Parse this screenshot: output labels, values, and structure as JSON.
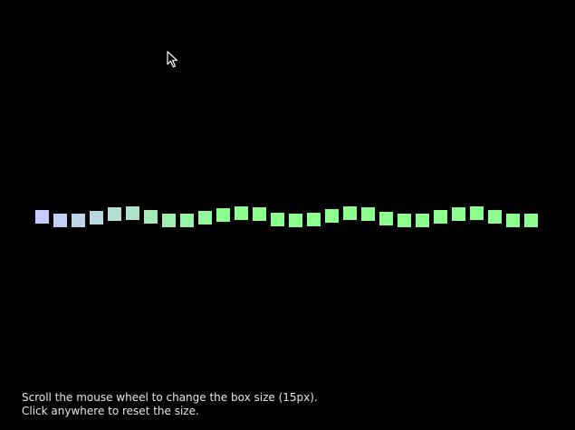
{
  "instructions": {
    "line1": "Scroll the mouse wheel to change the box size (15px).",
    "line2": "Click anywhere to reset the size."
  },
  "boxes": {
    "count": 28,
    "size_px_label": "15px",
    "start_color": "#c9c9ff",
    "end_color": "#8cff8c"
  },
  "colors": {
    "background": "#000000",
    "text": "#e6e6e6"
  },
  "icons": {
    "cursor": "mouse-pointer-icon"
  }
}
